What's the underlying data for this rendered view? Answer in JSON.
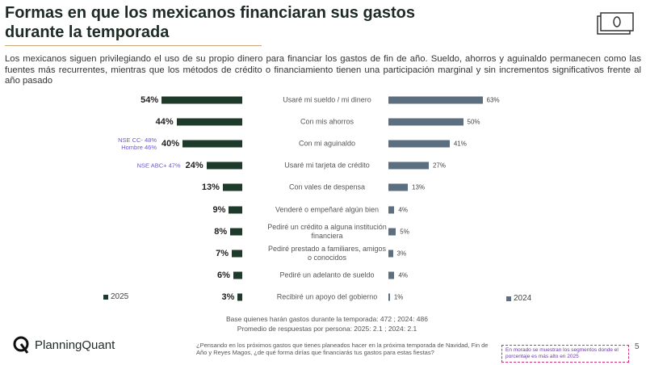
{
  "header": {
    "title": "Formas en que los mexicanos financiaran sus gastos durante la temporada",
    "description": "Los mexicanos siguen privilegiando el uso de su propio dinero para financiar los gastos de fin de año. Sueldo, ahorros y aguinaldo permanecen como las fuentes más recurrentes, mientras que los métodos de crédito o financiamiento tienen una participación marginal y sin incrementos significativos frente al año pasado"
  },
  "chart_data": {
    "type": "butterfly-bar",
    "categories": [
      "Usaré mi sueldo / mi dinero",
      "Con mis ahorros",
      "Con mi aguinaldo",
      "Usaré mi tarjeta de crédito",
      "Con vales de despensa",
      "Venderé o empeñaré algún bien",
      "Pediré un crédito a alguna institución financiera",
      "Pediré prestado a familiares, amigos o conocidos",
      "Pediré un adelanto de sueldo",
      "Recibiré un apoyo del gobierno"
    ],
    "series": [
      {
        "name": "2025",
        "color": "#1e3a2a",
        "values": [
          54,
          44,
          40,
          24,
          13,
          9,
          8,
          7,
          6,
          3
        ],
        "value_labels": [
          "54%",
          "44%",
          "40%",
          "24%",
          "13%",
          "9%",
          "8%",
          "7%",
          "6%",
          "3%"
        ]
      },
      {
        "name": "2024",
        "color": "#5b6f80",
        "values": [
          63,
          50,
          41,
          27,
          13,
          4,
          5,
          3,
          4,
          1
        ],
        "value_labels": [
          "63%",
          "50%",
          "41%",
          "27%",
          "13%",
          "4%",
          "5%",
          "3%",
          "4%",
          "1%"
        ]
      }
    ],
    "annotations": [
      [
        "NSE CC- 48%",
        "Hombre 46%"
      ],
      [
        "NSE ABC+ 47%"
      ]
    ],
    "notes": [
      "Base quienes harán gastos durante la temporada: 472 ; 2024: 486",
      "Promedio de respuestas por persona: 2025: 2.1 ; 2024: 2.1"
    ]
  },
  "footer": {
    "logo": "PlanningQuant",
    "question": "¿Pensando en los próximos gastos que tienes planeados hacer en la próxima temporada de Navidad, Fin de Año y Reyes Magos, ¿de qué forma dirías que financiarás tus gastos para estas fiestas?",
    "highlight_note": "En morado se muestran los segmentos donde el porcentaje es más alto en 2025",
    "page": "5"
  }
}
